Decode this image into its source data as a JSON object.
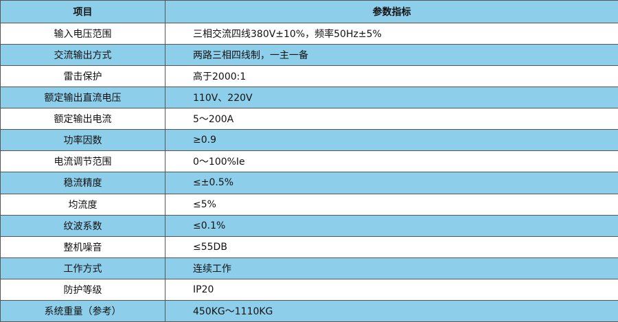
{
  "table": {
    "header": [
      "项目",
      "参数指标"
    ],
    "rows": [
      [
        "输入电压范围",
        "三相交流四线380V±10%，频率50Hz±5%"
      ],
      [
        "交流输出方式",
        "两路三相四线制，一主一备"
      ],
      [
        "雷击保护",
        "高于2000:1"
      ],
      [
        "额定输出直流电压",
        "110V、220V"
      ],
      [
        "额定输出电流",
        "5～200A"
      ],
      [
        "功率因数",
        "≥0.9"
      ],
      [
        "电流调节范围",
        "0～100%Ie"
      ],
      [
        "稳流精度",
        "≤±0.5%"
      ],
      [
        "均流度",
        "≤5%"
      ],
      [
        "纹波系数",
        "≤0.1%"
      ],
      [
        "整机噪音",
        "≤55DB"
      ],
      [
        "工作方式",
        "连续工作"
      ],
      [
        "防护等级",
        "IP20"
      ],
      [
        "系统重量（参考）",
        "450KG～1110KG"
      ]
    ]
  }
}
